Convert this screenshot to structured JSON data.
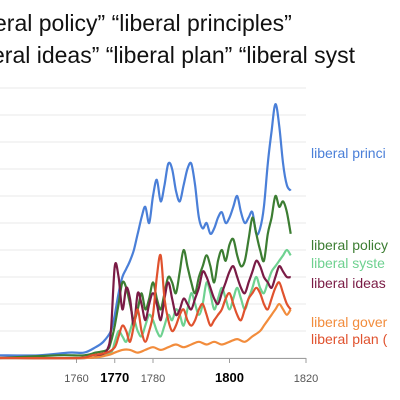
{
  "title_lines": [
    "eral policy”  “liberal principles”",
    "eral ideas” “liberal plan” “liberal syst"
  ],
  "chart_data": {
    "type": "line",
    "x_ticks": [
      {
        "label": "1760",
        "value": 1760,
        "bold": false
      },
      {
        "label": "1770",
        "value": 1770,
        "bold": true
      },
      {
        "label": "1780",
        "value": 1780,
        "bold": false
      },
      {
        "label": "1800",
        "value": 1800,
        "bold": true
      },
      {
        "label": "1820",
        "value": 1820,
        "bold": false
      }
    ],
    "xlim": [
      1740,
      1820
    ],
    "ylim": [
      0,
      100
    ],
    "grid": true,
    "series": [
      {
        "name": "liberal princi",
        "color": "#4a7fd8",
        "points": [
          [
            1740,
            1
          ],
          [
            1750,
            1
          ],
          [
            1758,
            2
          ],
          [
            1762,
            2
          ],
          [
            1765,
            4
          ],
          [
            1767,
            6
          ],
          [
            1769,
            10
          ],
          [
            1770,
            16
          ],
          [
            1771,
            24
          ],
          [
            1772,
            30
          ],
          [
            1773,
            33
          ],
          [
            1774,
            36
          ],
          [
            1775,
            40
          ],
          [
            1776,
            46
          ],
          [
            1777,
            52
          ],
          [
            1778,
            56
          ],
          [
            1779,
            50
          ],
          [
            1780,
            60
          ],
          [
            1781,
            66
          ],
          [
            1782,
            58
          ],
          [
            1783,
            64
          ],
          [
            1784,
            72
          ],
          [
            1785,
            70
          ],
          [
            1786,
            62
          ],
          [
            1787,
            58
          ],
          [
            1788,
            64
          ],
          [
            1789,
            70
          ],
          [
            1790,
            72
          ],
          [
            1791,
            64
          ],
          [
            1792,
            52
          ],
          [
            1793,
            48
          ],
          [
            1794,
            50
          ],
          [
            1795,
            46
          ],
          [
            1796,
            48
          ],
          [
            1797,
            52
          ],
          [
            1798,
            54
          ],
          [
            1799,
            50
          ],
          [
            1800,
            52
          ],
          [
            1801,
            56
          ],
          [
            1802,
            60
          ],
          [
            1803,
            54
          ],
          [
            1804,
            50
          ],
          [
            1805,
            52
          ],
          [
            1806,
            54
          ],
          [
            1807,
            46
          ],
          [
            1808,
            48
          ],
          [
            1809,
            56
          ],
          [
            1810,
            72
          ],
          [
            1811,
            84
          ],
          [
            1812,
            94
          ],
          [
            1813,
            86
          ],
          [
            1814,
            72
          ],
          [
            1815,
            64
          ],
          [
            1816,
            62
          ]
        ]
      },
      {
        "name": "liberal policy",
        "color": "#3c7d32",
        "points": [
          [
            1740,
            0
          ],
          [
            1755,
            1
          ],
          [
            1762,
            1
          ],
          [
            1765,
            2
          ],
          [
            1768,
            3
          ],
          [
            1769,
            6
          ],
          [
            1770,
            12
          ],
          [
            1771,
            20
          ],
          [
            1772,
            28
          ],
          [
            1773,
            26
          ],
          [
            1774,
            20
          ],
          [
            1775,
            14
          ],
          [
            1776,
            18
          ],
          [
            1777,
            24
          ],
          [
            1778,
            18
          ],
          [
            1779,
            22
          ],
          [
            1780,
            28
          ],
          [
            1781,
            22
          ],
          [
            1782,
            18
          ],
          [
            1783,
            24
          ],
          [
            1784,
            30
          ],
          [
            1785,
            28
          ],
          [
            1786,
            24
          ],
          [
            1787,
            32
          ],
          [
            1788,
            40
          ],
          [
            1789,
            34
          ],
          [
            1790,
            28
          ],
          [
            1791,
            24
          ],
          [
            1792,
            30
          ],
          [
            1793,
            34
          ],
          [
            1794,
            38
          ],
          [
            1795,
            34
          ],
          [
            1796,
            28
          ],
          [
            1797,
            36
          ],
          [
            1798,
            40
          ],
          [
            1799,
            36
          ],
          [
            1800,
            42
          ],
          [
            1801,
            44
          ],
          [
            1802,
            38
          ],
          [
            1803,
            34
          ],
          [
            1804,
            36
          ],
          [
            1805,
            44
          ],
          [
            1806,
            52
          ],
          [
            1807,
            46
          ],
          [
            1808,
            40
          ],
          [
            1809,
            36
          ],
          [
            1810,
            46
          ],
          [
            1811,
            52
          ],
          [
            1812,
            60
          ],
          [
            1813,
            56
          ],
          [
            1814,
            58
          ],
          [
            1815,
            54
          ],
          [
            1816,
            46
          ]
        ]
      },
      {
        "name": "liberal syste",
        "color": "#6ed190",
        "points": [
          [
            1740,
            0
          ],
          [
            1762,
            0
          ],
          [
            1766,
            1
          ],
          [
            1769,
            2
          ],
          [
            1770,
            6
          ],
          [
            1771,
            10
          ],
          [
            1772,
            8
          ],
          [
            1773,
            6
          ],
          [
            1774,
            10
          ],
          [
            1775,
            14
          ],
          [
            1776,
            10
          ],
          [
            1777,
            8
          ],
          [
            1778,
            12
          ],
          [
            1779,
            16
          ],
          [
            1780,
            14
          ],
          [
            1781,
            10
          ],
          [
            1782,
            8
          ],
          [
            1783,
            12
          ],
          [
            1784,
            16
          ],
          [
            1785,
            14
          ],
          [
            1786,
            18
          ],
          [
            1787,
            16
          ],
          [
            1788,
            12
          ],
          [
            1789,
            18
          ],
          [
            1790,
            24
          ],
          [
            1791,
            20
          ],
          [
            1792,
            16
          ],
          [
            1793,
            20
          ],
          [
            1794,
            28
          ],
          [
            1795,
            24
          ],
          [
            1796,
            18
          ],
          [
            1797,
            22
          ],
          [
            1798,
            26
          ],
          [
            1799,
            22
          ],
          [
            1800,
            18
          ],
          [
            1801,
            22
          ],
          [
            1802,
            26
          ],
          [
            1803,
            22
          ],
          [
            1804,
            18
          ],
          [
            1805,
            22
          ],
          [
            1806,
            26
          ],
          [
            1807,
            30
          ],
          [
            1808,
            26
          ],
          [
            1809,
            24
          ],
          [
            1810,
            28
          ],
          [
            1811,
            32
          ],
          [
            1812,
            34
          ],
          [
            1813,
            36
          ],
          [
            1814,
            38
          ],
          [
            1815,
            40
          ],
          [
            1816,
            38
          ]
        ]
      },
      {
        "name": "liberal ideas",
        "color": "#7a1b45",
        "points": [
          [
            1740,
            0
          ],
          [
            1762,
            0
          ],
          [
            1766,
            1
          ],
          [
            1768,
            3
          ],
          [
            1769,
            10
          ],
          [
            1770,
            34
          ],
          [
            1771,
            30
          ],
          [
            1772,
            18
          ],
          [
            1773,
            26
          ],
          [
            1774,
            22
          ],
          [
            1775,
            12
          ],
          [
            1776,
            24
          ],
          [
            1777,
            20
          ],
          [
            1778,
            14
          ],
          [
            1779,
            20
          ],
          [
            1780,
            24
          ],
          [
            1781,
            20
          ],
          [
            1782,
            14
          ],
          [
            1783,
            22
          ],
          [
            1784,
            28
          ],
          [
            1785,
            22
          ],
          [
            1786,
            16
          ],
          [
            1787,
            18
          ],
          [
            1788,
            22
          ],
          [
            1789,
            20
          ],
          [
            1790,
            18
          ],
          [
            1791,
            22
          ],
          [
            1792,
            26
          ],
          [
            1793,
            32
          ],
          [
            1794,
            30
          ],
          [
            1795,
            26
          ],
          [
            1796,
            22
          ],
          [
            1797,
            20
          ],
          [
            1798,
            24
          ],
          [
            1799,
            28
          ],
          [
            1800,
            32
          ],
          [
            1801,
            34
          ],
          [
            1802,
            30
          ],
          [
            1803,
            26
          ],
          [
            1804,
            24
          ],
          [
            1805,
            28
          ],
          [
            1806,
            32
          ],
          [
            1807,
            36
          ],
          [
            1808,
            34
          ],
          [
            1809,
            30
          ],
          [
            1810,
            28
          ],
          [
            1811,
            26
          ],
          [
            1812,
            30
          ],
          [
            1813,
            34
          ],
          [
            1814,
            32
          ],
          [
            1815,
            30
          ],
          [
            1816,
            30
          ]
        ]
      },
      {
        "name": "liberal gover",
        "color": "#f28c3c",
        "points": [
          [
            1740,
            0
          ],
          [
            1762,
            0
          ],
          [
            1768,
            1
          ],
          [
            1770,
            2
          ],
          [
            1772,
            3
          ],
          [
            1774,
            3
          ],
          [
            1776,
            2
          ],
          [
            1778,
            3
          ],
          [
            1780,
            4
          ],
          [
            1782,
            3
          ],
          [
            1784,
            4
          ],
          [
            1786,
            5
          ],
          [
            1788,
            4
          ],
          [
            1790,
            5
          ],
          [
            1792,
            6
          ],
          [
            1794,
            5
          ],
          [
            1796,
            6
          ],
          [
            1798,
            5
          ],
          [
            1800,
            6
          ],
          [
            1802,
            7
          ],
          [
            1804,
            6
          ],
          [
            1806,
            8
          ],
          [
            1808,
            10
          ],
          [
            1809,
            12
          ],
          [
            1810,
            14
          ],
          [
            1811,
            16
          ],
          [
            1812,
            18
          ],
          [
            1813,
            20
          ],
          [
            1814,
            18
          ],
          [
            1815,
            16
          ],
          [
            1816,
            18
          ]
        ]
      },
      {
        "name": "liberal plan (",
        "color": "#e0522e",
        "points": [
          [
            1740,
            0
          ],
          [
            1760,
            0
          ],
          [
            1764,
            1
          ],
          [
            1768,
            2
          ],
          [
            1770,
            4
          ],
          [
            1771,
            8
          ],
          [
            1772,
            12
          ],
          [
            1773,
            10
          ],
          [
            1774,
            6
          ],
          [
            1775,
            12
          ],
          [
            1776,
            18
          ],
          [
            1777,
            10
          ],
          [
            1778,
            6
          ],
          [
            1779,
            10
          ],
          [
            1780,
            16
          ],
          [
            1781,
            30
          ],
          [
            1782,
            38
          ],
          [
            1783,
            22
          ],
          [
            1784,
            14
          ],
          [
            1785,
            10
          ],
          [
            1786,
            12
          ],
          [
            1787,
            16
          ],
          [
            1788,
            18
          ],
          [
            1789,
            14
          ],
          [
            1790,
            12
          ],
          [
            1791,
            14
          ],
          [
            1792,
            18
          ],
          [
            1793,
            20
          ],
          [
            1794,
            16
          ],
          [
            1795,
            12
          ],
          [
            1796,
            14
          ],
          [
            1797,
            16
          ],
          [
            1798,
            18
          ],
          [
            1799,
            22
          ],
          [
            1800,
            24
          ],
          [
            1801,
            20
          ],
          [
            1802,
            16
          ],
          [
            1803,
            14
          ],
          [
            1804,
            18
          ],
          [
            1805,
            22
          ],
          [
            1806,
            24
          ],
          [
            1807,
            26
          ],
          [
            1808,
            24
          ],
          [
            1809,
            20
          ],
          [
            1810,
            18
          ],
          [
            1811,
            22
          ],
          [
            1812,
            26
          ],
          [
            1813,
            28
          ],
          [
            1814,
            24
          ],
          [
            1815,
            20
          ],
          [
            1816,
            18
          ]
        ]
      }
    ]
  }
}
